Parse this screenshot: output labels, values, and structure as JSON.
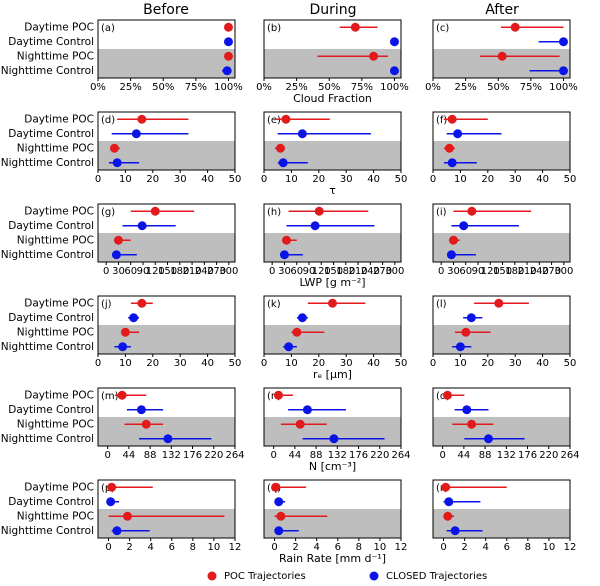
{
  "column_titles": [
    "Before",
    "During",
    "After"
  ],
  "legend": [
    {
      "name": "POC Trajectories",
      "color": "#e31a1c"
    },
    {
      "name": "CLOSED Trajectories",
      "color": "#0a14e6"
    }
  ],
  "chart_data": [
    {
      "type": "dot-errorbar",
      "xlabel": "Cloud Fraction",
      "xlim": [
        0,
        105
      ],
      "xticks": [
        {
          "value": 0,
          "label": "0%"
        },
        {
          "value": 25,
          "label": "25%"
        },
        {
          "value": 50,
          "label": "50%"
        },
        {
          "value": 75,
          "label": "75%"
        },
        {
          "value": 100,
          "label": "100%"
        }
      ],
      "categories": [
        "Daytime POC",
        "Daytime Control",
        "Nighttime POC",
        "Nighttime Control"
      ],
      "panels": [
        {
          "label": "(a)",
          "series": [
            {
              "values": [
                100,
                null,
                100,
                null
              ],
              "low": [
                99,
                null,
                99,
                null
              ],
              "high": [
                100,
                null,
                100,
                null
              ]
            },
            {
              "values": [
                null,
                100,
                null,
                99
              ],
              "low": [
                null,
                99,
                null,
                95
              ],
              "high": [
                null,
                100,
                null,
                100
              ]
            }
          ]
        },
        {
          "label": "(b)",
          "series": [
            {
              "values": [
                70,
                null,
                84,
                null
              ],
              "low": [
                58,
                null,
                41,
                null
              ],
              "high": [
                87,
                null,
                95,
                null
              ]
            },
            {
              "values": [
                null,
                100,
                null,
                100
              ],
              "low": [
                null,
                97,
                null,
                98
              ],
              "high": [
                null,
                100,
                null,
                100
              ]
            }
          ]
        },
        {
          "label": "(c)",
          "series": [
            {
              "values": [
                63,
                null,
                53,
                null
              ],
              "low": [
                52,
                null,
                36,
                null
              ],
              "high": [
                100,
                null,
                97,
                null
              ]
            },
            {
              "values": [
                null,
                100,
                null,
                100
              ],
              "low": [
                null,
                81,
                null,
                74
              ],
              "high": [
                null,
                100,
                null,
                100
              ]
            }
          ]
        }
      ]
    },
    {
      "type": "dot-errorbar",
      "xlabel": "τ",
      "xlim": [
        0,
        50
      ],
      "xticks": [
        0,
        10,
        20,
        30,
        40,
        50
      ],
      "categories": [
        "Daytime POC",
        "Daytime Control",
        "Nighttime POC",
        "Nighttime Control"
      ],
      "panels": [
        {
          "label": "(d)",
          "series": [
            {
              "values": [
                16,
                null,
                6,
                null
              ],
              "low": [
                7,
                null,
                5,
                null
              ],
              "high": [
                33,
                null,
                8,
                null
              ]
            },
            {
              "values": [
                null,
                14,
                null,
                7
              ],
              "low": [
                null,
                5,
                null,
                4
              ],
              "high": [
                null,
                33,
                null,
                15
              ]
            }
          ]
        },
        {
          "label": "(e)",
          "series": [
            {
              "values": [
                8,
                null,
                6,
                null
              ],
              "low": [
                4,
                null,
                4,
                null
              ],
              "high": [
                24,
                null,
                7,
                null
              ]
            },
            {
              "values": [
                null,
                14,
                null,
                7
              ],
              "low": [
                null,
                5,
                null,
                5
              ],
              "high": [
                null,
                39,
                null,
                16
              ]
            }
          ]
        },
        {
          "label": "(f)",
          "series": [
            {
              "values": [
                7,
                null,
                6,
                null
              ],
              "low": [
                4,
                null,
                4,
                null
              ],
              "high": [
                20,
                null,
                8,
                null
              ]
            },
            {
              "values": [
                null,
                9,
                null,
                7
              ],
              "low": [
                null,
                5,
                null,
                4
              ],
              "high": [
                null,
                25,
                null,
                16
              ]
            }
          ]
        }
      ]
    },
    {
      "type": "dot-errorbar",
      "xlabel": "LWP [g m⁻²]",
      "xlim": [
        -20,
        315
      ],
      "xticks": [
        0,
        30,
        60,
        90,
        120,
        150,
        180,
        210,
        240,
        270,
        300
      ],
      "categories": [
        "Daytime POC",
        "Daytime Control",
        "Nighttime POC",
        "Nighttime Control"
      ],
      "panels": [
        {
          "label": "(g)",
          "series": [
            {
              "values": [
                120,
                null,
                30,
                null
              ],
              "low": [
                60,
                null,
                25,
                null
              ],
              "high": [
                215,
                null,
                60,
                null
              ]
            },
            {
              "values": [
                null,
                88,
                null,
                25
              ],
              "low": [
                null,
                40,
                null,
                15
              ],
              "high": [
                null,
                170,
                null,
                75
              ]
            }
          ]
        },
        {
          "label": "(h)",
          "series": [
            {
              "values": [
                115,
                null,
                35,
                null
              ],
              "low": [
                40,
                null,
                30,
                null
              ],
              "high": [
                235,
                null,
                60,
                null
              ]
            },
            {
              "values": [
                null,
                105,
                null,
                30
              ],
              "low": [
                null,
                35,
                null,
                20
              ],
              "high": [
                null,
                250,
                null,
                75
              ]
            }
          ]
        },
        {
          "label": "(i)",
          "series": [
            {
              "values": [
                75,
                null,
                30,
                null
              ],
              "low": [
                30,
                null,
                25,
                null
              ],
              "high": [
                220,
                null,
                45,
                null
              ]
            },
            {
              "values": [
                null,
                55,
                null,
                25
              ],
              "low": [
                null,
                25,
                null,
                15
              ],
              "high": [
                null,
                190,
                null,
                85
              ]
            }
          ]
        }
      ]
    },
    {
      "type": "dot-errorbar",
      "xlabel": "rₑ [μm]",
      "xlim": [
        0,
        50
      ],
      "xticks": [
        0,
        10,
        20,
        30,
        40,
        50
      ],
      "categories": [
        "Daytime POC",
        "Daytime Control",
        "Nighttime POC",
        "Nighttime Control"
      ],
      "panels": [
        {
          "label": "(j)",
          "series": [
            {
              "values": [
                16,
                null,
                10,
                null
              ],
              "low": [
                12,
                null,
                9,
                null
              ],
              "high": [
                20,
                null,
                15,
                null
              ]
            },
            {
              "values": [
                null,
                13,
                null,
                9
              ],
              "low": [
                null,
                11,
                null,
                6
              ],
              "high": [
                null,
                15,
                null,
                12
              ]
            }
          ]
        },
        {
          "label": "(k)",
          "series": [
            {
              "values": [
                25,
                null,
                12,
                null
              ],
              "low": [
                16,
                null,
                10,
                null
              ],
              "high": [
                37,
                null,
                22,
                null
              ]
            },
            {
              "values": [
                null,
                14,
                null,
                9
              ],
              "low": [
                null,
                12,
                null,
                7
              ],
              "high": [
                null,
                16,
                null,
                12
              ]
            }
          ]
        },
        {
          "label": "(l)",
          "series": [
            {
              "values": [
                24,
                null,
                12,
                null
              ],
              "low": [
                15,
                null,
                8,
                null
              ],
              "high": [
                35,
                null,
                21,
                null
              ]
            },
            {
              "values": [
                null,
                14,
                null,
                10
              ],
              "low": [
                null,
                11,
                null,
                7
              ],
              "high": [
                null,
                18,
                null,
                14
              ]
            }
          ]
        }
      ]
    },
    {
      "type": "dot-errorbar",
      "xlabel": "N [cm⁻³]",
      "xlim": [
        -20,
        264
      ],
      "xticks": [
        0,
        44,
        88,
        132,
        176,
        220,
        264
      ],
      "categories": [
        "Daytime POC",
        "Daytime Control",
        "Nighttime POC",
        "Nighttime Control"
      ],
      "panels": [
        {
          "label": "(m)",
          "series": [
            {
              "values": [
                30,
                null,
                80,
                null
              ],
              "low": [
                15,
                null,
                35,
                null
              ],
              "high": [
                80,
                null,
                115,
                null
              ]
            },
            {
              "values": [
                null,
                70,
                null,
                125
              ],
              "low": [
                null,
                40,
                null,
                65
              ],
              "high": [
                null,
                115,
                null,
                215
              ]
            }
          ]
        },
        {
          "label": "(n)",
          "series": [
            {
              "values": [
                10,
                null,
                55,
                null
              ],
              "low": [
                5,
                null,
                15,
                null
              ],
              "high": [
                40,
                null,
                110,
                null
              ]
            },
            {
              "values": [
                null,
                70,
                null,
                125
              ],
              "low": [
                null,
                30,
                null,
                60
              ],
              "high": [
                null,
                150,
                null,
                230
              ]
            }
          ]
        },
        {
          "label": "(o)",
          "series": [
            {
              "values": [
                10,
                null,
                60,
                null
              ],
              "low": [
                5,
                null,
                20,
                null
              ],
              "high": [
                45,
                null,
                105,
                null
              ]
            },
            {
              "values": [
                null,
                50,
                null,
                95
              ],
              "low": [
                null,
                25,
                null,
                45
              ],
              "high": [
                null,
                95,
                null,
                170
              ]
            }
          ]
        }
      ]
    },
    {
      "type": "dot-errorbar",
      "xlabel": "Rain Rate [mm d⁻¹]",
      "xlim": [
        -1,
        12
      ],
      "xticks": [
        0,
        2,
        4,
        6,
        8,
        10,
        12
      ],
      "categories": [
        "Daytime POC",
        "Daytime Control",
        "Nighttime POC",
        "Nighttime Control"
      ],
      "panels": [
        {
          "label": "(p)",
          "series": [
            {
              "values": [
                0.3,
                null,
                1.8,
                null
              ],
              "low": [
                0,
                null,
                0,
                null
              ],
              "high": [
                4.2,
                null,
                11,
                null
              ]
            },
            {
              "values": [
                null,
                0.2,
                null,
                0.8
              ],
              "low": [
                null,
                0,
                null,
                0.3
              ],
              "high": [
                null,
                1,
                null,
                3.9
              ]
            }
          ]
        },
        {
          "label": "(q)",
          "series": [
            {
              "values": [
                0.1,
                null,
                0.6,
                null
              ],
              "low": [
                0,
                null,
                0,
                null
              ],
              "high": [
                3,
                null,
                5,
                null
              ]
            },
            {
              "values": [
                null,
                0.4,
                null,
                0.4
              ],
              "low": [
                null,
                0,
                null,
                0
              ],
              "high": [
                null,
                1,
                null,
                2.3
              ]
            }
          ]
        },
        {
          "label": "(r)",
          "series": [
            {
              "values": [
                0.2,
                null,
                0.4,
                null
              ],
              "low": [
                0,
                null,
                0,
                null
              ],
              "high": [
                6,
                null,
                1,
                null
              ]
            },
            {
              "values": [
                null,
                0.5,
                null,
                1.1
              ],
              "low": [
                null,
                0,
                null,
                0.3
              ],
              "high": [
                null,
                3.5,
                null,
                3.7
              ]
            }
          ]
        }
      ]
    }
  ]
}
